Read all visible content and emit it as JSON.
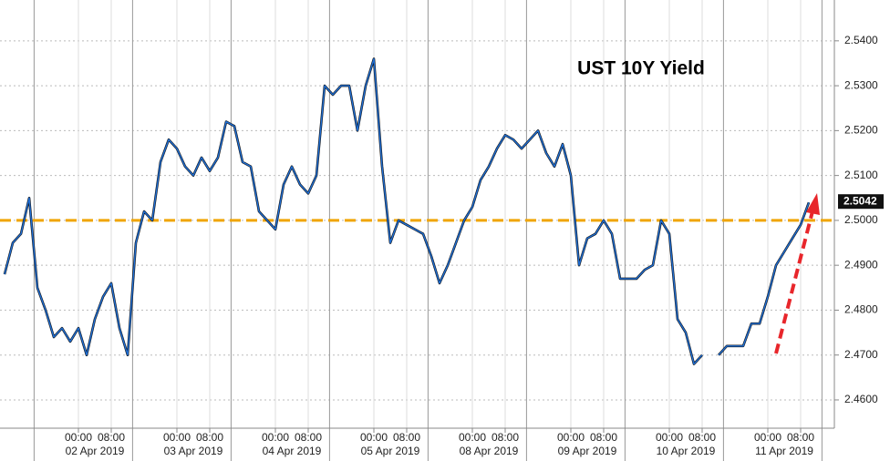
{
  "chart_data": {
    "type": "line",
    "title": "UST 10Y Yield",
    "color": "#1f6fd6",
    "values": [
      2.488,
      2.495,
      2.497,
      2.505,
      2.485,
      2.48,
      2.474,
      2.476,
      2.473,
      2.476,
      2.47,
      2.478,
      2.483,
      2.486,
      2.476,
      2.47,
      2.495,
      2.502,
      2.5,
      2.513,
      2.518,
      2.516,
      2.512,
      2.51,
      2.514,
      2.511,
      2.514,
      2.522,
      2.521,
      2.513,
      2.512,
      2.502,
      2.5,
      2.498,
      2.508,
      2.512,
      2.508,
      2.506,
      2.51,
      2.53,
      2.528,
      2.53,
      2.53,
      2.52,
      2.53,
      2.536,
      2.512,
      2.495,
      2.5,
      2.499,
      2.498,
      2.497,
      2.492,
      2.486,
      2.49,
      2.495,
      2.5,
      2.503,
      2.509,
      2.512,
      2.516,
      2.519,
      2.518,
      2.516,
      2.518,
      2.52,
      2.515,
      2.512,
      2.517,
      2.51,
      2.49,
      2.496,
      2.497,
      2.5,
      2.497,
      2.487,
      2.487,
      2.487,
      2.489,
      2.49,
      2.5,
      2.497,
      2.478,
      2.475,
      2.468,
      2.47,
      null,
      2.47,
      2.472,
      2.472,
      2.472,
      2.477,
      2.477,
      2.483,
      2.49,
      2.493,
      2.496,
      2.499,
      2.504
    ],
    "xticks": [
      {
        "value": 9,
        "label": "00:00"
      },
      {
        "value": 13,
        "label": "08:00"
      },
      {
        "value": 21,
        "label": "00:00"
      },
      {
        "value": 25,
        "label": "08:00"
      },
      {
        "value": 33,
        "label": "00:00"
      },
      {
        "value": 37,
        "label": "08:00"
      },
      {
        "value": 45,
        "label": "00:00"
      },
      {
        "value": 49,
        "label": "08:00"
      },
      {
        "value": 57,
        "label": "00:00"
      },
      {
        "value": 61,
        "label": "08:00"
      },
      {
        "value": 69,
        "label": "00:00"
      },
      {
        "value": 73,
        "label": "08:00"
      },
      {
        "value": 81,
        "label": "00:00"
      },
      {
        "value": 85,
        "label": "08:00"
      },
      {
        "value": 93,
        "label": "00:00"
      },
      {
        "value": 97,
        "label": "08:00"
      }
    ],
    "date_labels": [
      "02 Apr 2019",
      "03 Apr 2019",
      "04 Apr 2019",
      "05 Apr 2019",
      "08 Apr 2019",
      "09 Apr 2019",
      "10 Apr 2019",
      "11 Apr 2019"
    ],
    "ylim": [
      2.4537,
      2.5491
    ],
    "yticks": [
      {
        "value": 2.46,
        "label": "2.4600"
      },
      {
        "value": 2.47,
        "label": "2.4700"
      },
      {
        "value": 2.48,
        "label": "2.4800"
      },
      {
        "value": 2.49,
        "label": "2.4900"
      },
      {
        "value": 2.5,
        "label": "2.5000"
      },
      {
        "value": 2.51,
        "label": "2.5100"
      },
      {
        "value": 2.52,
        "label": "2.5200"
      },
      {
        "value": 2.53,
        "label": "2.5300"
      },
      {
        "value": 2.54,
        "label": "2.5400"
      }
    ],
    "reference_line": {
      "value": 2.5,
      "color": "#f0a500"
    },
    "last_value": 2.5042,
    "grid": true
  }
}
